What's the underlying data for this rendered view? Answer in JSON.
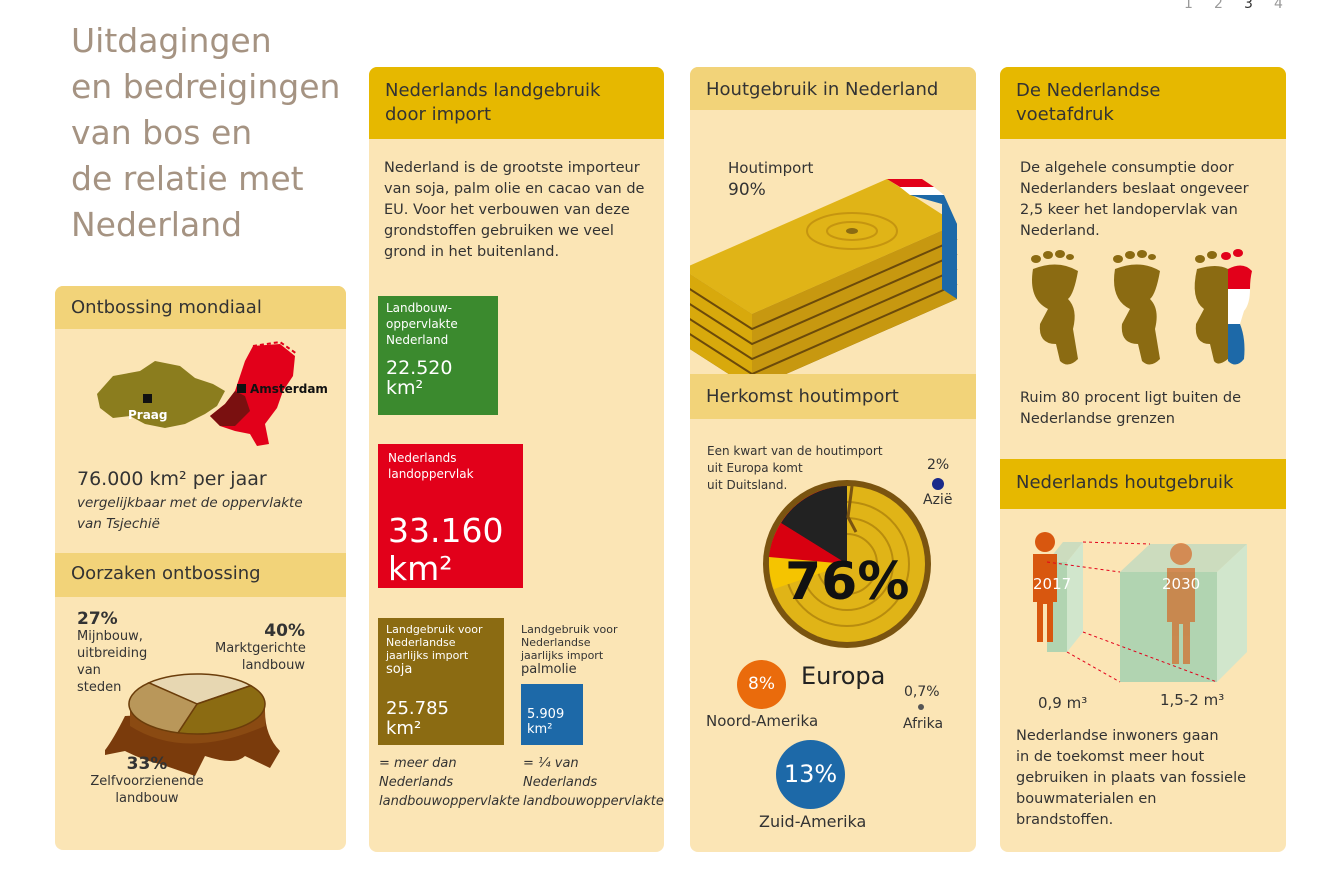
{
  "pagination": {
    "pages": [
      "1",
      "2",
      "3",
      "4"
    ],
    "current": "3"
  },
  "title_lines": [
    "Uitdagingen",
    "en bedreigingen",
    "van bos en",
    "de relatie met",
    "Nederland"
  ],
  "col1": {
    "ontbossing": {
      "heading": "Ontbossing mondiaal",
      "map_label_praag": "Praag",
      "map_label_amsterdam": "Amsterdam",
      "stat": "76.000 km² per jaar",
      "note_line1": "vergelijkbaar met de oppervlakte",
      "note_line2": "van Tsjechië"
    },
    "oorzaken": {
      "heading": "Oorzaken ontbossing",
      "slices": [
        {
          "pct": "27%",
          "label_lines": [
            "Mijnbouw,",
            "uitbreiding",
            "van",
            "steden"
          ],
          "value": 27,
          "color": "#e7d7b2"
        },
        {
          "pct": "40%",
          "label_lines": [
            "Marktgerichte",
            "landbouw"
          ],
          "value": 40,
          "color": "#8b6b12"
        },
        {
          "pct": "33%",
          "label_lines": [
            "Zelfvoorzienende",
            "landbouw"
          ],
          "value": 33,
          "color": "#b9975a"
        }
      ]
    }
  },
  "col2": {
    "heading_line1": "Nederlands landgebruik",
    "heading_line2": "door import",
    "intro": [
      "Nederland is de grootste importeur",
      "van soja, palm olie en cacao van de",
      "EU. Voor het verbouwen van deze",
      "grondstoffen gebruiken we veel",
      "grond in het buitenland."
    ],
    "green_box": {
      "label_lines": [
        "Landbouw-",
        "oppervlakte",
        "Nederland"
      ],
      "value": "22.520",
      "unit": "km²",
      "color": "#3b8a2e"
    },
    "red_box": {
      "label_lines": [
        "Nederlands",
        "landoppervlak"
      ],
      "value": "33.160",
      "unit": "km²",
      "color": "#e2001a"
    },
    "soja": {
      "label_lines": [
        "Landgebruik voor",
        "Nederlandse",
        "jaarlijks import"
      ],
      "product": "soja",
      "value": "25.785",
      "unit": "km²",
      "note_lines": [
        "= meer dan",
        "Nederlands",
        "landbouwoppervlakte"
      ],
      "color": "#8b6b12"
    },
    "palm": {
      "label_lines": [
        "Landgebruik voor",
        "Nederlandse",
        "jaarlijks import"
      ],
      "product": "palmolie",
      "value": "5.909",
      "unit": "km²",
      "note_lines": [
        "= ¼ van",
        "Nederlands",
        "landbouwoppervlakte"
      ],
      "color": "#1d69a8"
    }
  },
  "col3": {
    "heading": "Houtgebruik in Nederland",
    "import_label": "Houtimport",
    "import_pct": "90%",
    "herkomst_heading": "Herkomst houtimport",
    "herkomst_note": [
      "Een kwart van de houtimport",
      "uit Europa komt",
      "uit Duitsland."
    ],
    "europa_pct": "76%",
    "europa_label": "Europa",
    "azie_pct": "2%",
    "azie_label": "Azië",
    "afrika_pct": "0,7%",
    "afrika_label": "Afrika",
    "noord_pct": "8%",
    "noord_label": "Noord-Amerika",
    "zuid_pct": "13%",
    "zuid_label": "Zuid-Amerika"
  },
  "col4": {
    "heading_line1": "De Nederlandse",
    "heading_line2": "voetafdruk",
    "intro": [
      "De algehele consumptie door",
      "Nederlanders beslaat ongeveer",
      "2,5 keer het landopervlak van",
      "Nederland."
    ],
    "outside": [
      "Ruim 80 procent ligt buiten de",
      "Nederlandse grenzen"
    ],
    "houtgebruik_heading": "Nederlands houtgebruik",
    "year1": "2017",
    "year2": "2030",
    "vol1": "0,9 m³",
    "vol2": "1,5-2 m³",
    "outro": [
      "Nederlandse inwoners gaan",
      "in de toekomst meer hout",
      "gebruiken in plaats van fossiele",
      "bouwmaterialen en",
      "brandstoffen."
    ]
  }
}
